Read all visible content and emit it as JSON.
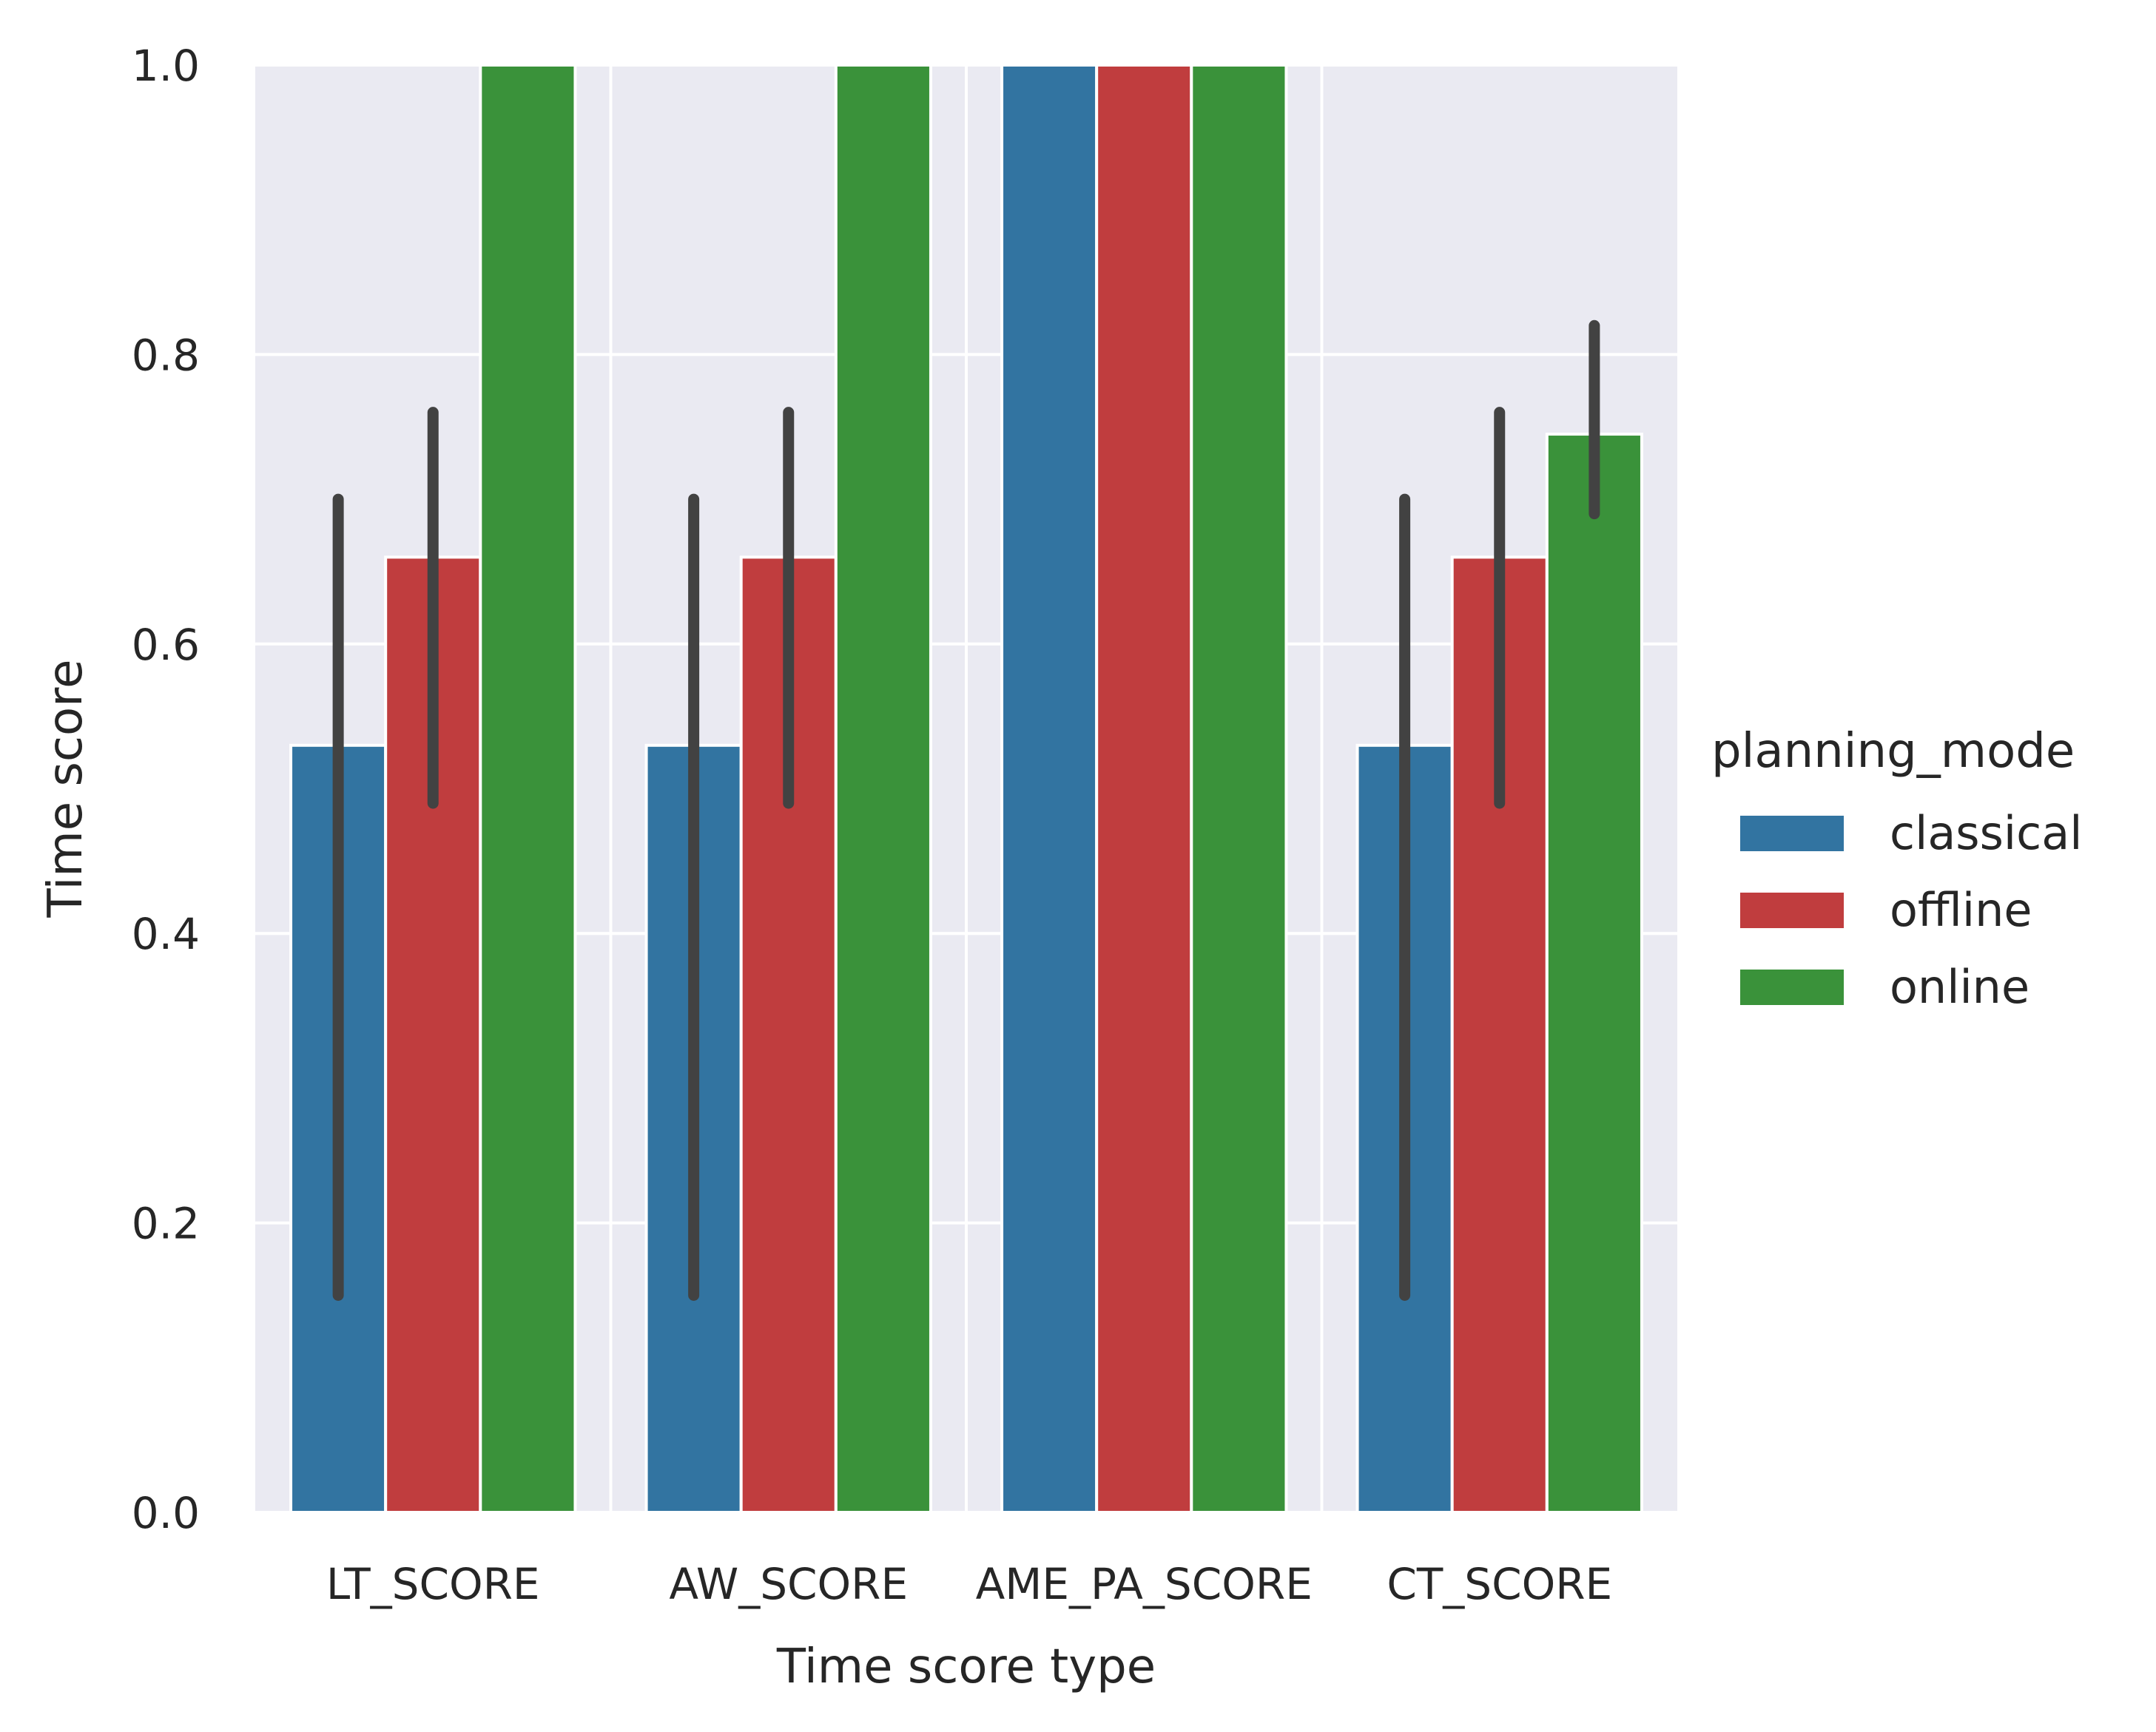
{
  "chart_data": {
    "type": "bar",
    "title": "",
    "xlabel": "Time score type",
    "ylabel": "Time score",
    "ylim": [
      0,
      1.0
    ],
    "yticks": [
      "0.0",
      "0.2",
      "0.4",
      "0.6",
      "0.8",
      "1.0"
    ],
    "grid": true,
    "legend_position": "right",
    "legend_title": "planning_mode",
    "categories": [
      "LT_SCORE",
      "AW_SCORE",
      "AME_PA_SCORE",
      "CT_SCORE"
    ],
    "series": [
      {
        "name": "classical",
        "color": "#3274a1",
        "values": [
          0.53,
          0.53,
          1.0,
          0.53
        ],
        "ci_low": [
          0.15,
          0.15,
          null,
          0.15
        ],
        "ci_high": [
          0.7,
          0.7,
          null,
          0.7
        ]
      },
      {
        "name": "offline",
        "color": "#c03d3e",
        "values": [
          0.66,
          0.66,
          1.0,
          0.66
        ],
        "ci_low": [
          0.49,
          0.49,
          null,
          0.49
        ],
        "ci_high": [
          0.76,
          0.76,
          null,
          0.76
        ]
      },
      {
        "name": "online",
        "color": "#3a923a",
        "values": [
          1.0,
          1.0,
          1.0,
          0.745
        ],
        "ci_low": [
          null,
          null,
          null,
          0.69
        ],
        "ci_high": [
          null,
          null,
          null,
          0.82
        ]
      }
    ],
    "plot_background": "#eaeaf2",
    "errorbar_color": "#424242"
  }
}
